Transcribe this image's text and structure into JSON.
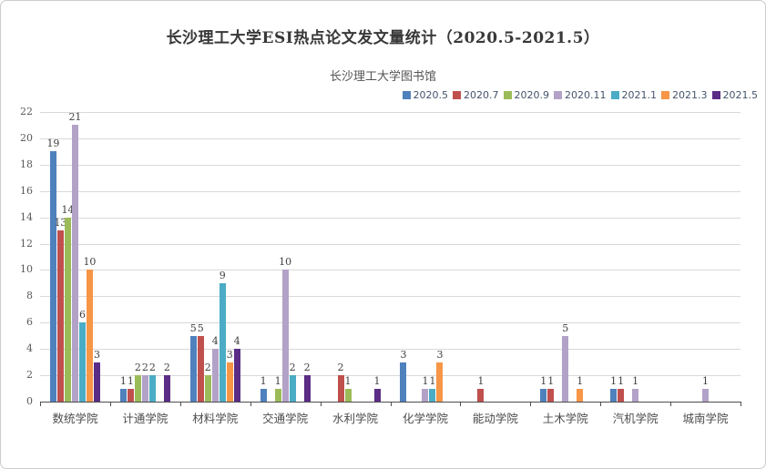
{
  "chart_data": {
    "type": "bar",
    "title": "长沙理工大学ESI热点论文发文量统计（2020.5-2021.5）",
    "subtitle": "长沙理工大学图书馆",
    "xlabel": "",
    "ylabel": "",
    "ylim": [
      0,
      22
    ],
    "ytick_step": 2,
    "yticks": [
      0,
      2,
      4,
      6,
      8,
      10,
      12,
      14,
      16,
      18,
      20,
      22
    ],
    "grid": true,
    "legend_position": "top-right",
    "value_labels": "non-zero bars labeled above bar",
    "categories": [
      "数统学院",
      "计通学院",
      "材料学院",
      "交通学院",
      "水利学院",
      "化学学院",
      "能动学院",
      "土木学院",
      "汽机学院",
      "城南学院"
    ],
    "series": [
      {
        "name": "2020.5",
        "color": "#4F81BD",
        "values": [
          19,
          1,
          5,
          1,
          0,
          3,
          0,
          1,
          1,
          0
        ]
      },
      {
        "name": "2020.7",
        "color": "#C0504D",
        "values": [
          13,
          1,
          5,
          0,
          2,
          0,
          1,
          1,
          1,
          0
        ]
      },
      {
        "name": "2020.9",
        "color": "#9BBB59",
        "values": [
          14,
          2,
          2,
          1,
          1,
          0,
          0,
          0,
          0,
          0
        ]
      },
      {
        "name": "2020.11",
        "color": "#B3A2C7",
        "values": [
          21,
          2,
          4,
          10,
          0,
          1,
          0,
          5,
          1,
          1
        ]
      },
      {
        "name": "2021.1",
        "color": "#4BACC6",
        "values": [
          6,
          2,
          9,
          2,
          0,
          1,
          0,
          0,
          0,
          0
        ]
      },
      {
        "name": "2021.3",
        "color": "#F79646",
        "values": [
          10,
          0,
          3,
          0,
          0,
          3,
          0,
          1,
          0,
          0
        ]
      },
      {
        "name": "2021.5",
        "color": "#5B2D86",
        "values": [
          3,
          2,
          4,
          2,
          1,
          0,
          0,
          0,
          0,
          0
        ]
      }
    ],
    "colors": {
      "gridline": "#d9d9d9",
      "axis": "#4d4d4d",
      "title_text": "#383838",
      "label_text": "#404040",
      "legend_text": "#44546a"
    }
  }
}
